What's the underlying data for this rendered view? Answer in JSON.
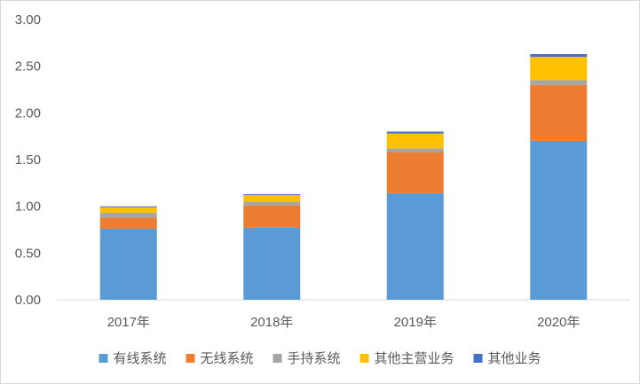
{
  "chart_data": {
    "type": "bar",
    "stacked": true,
    "categories": [
      "2017年",
      "2018年",
      "2019年",
      "2020年"
    ],
    "series": [
      {
        "name": "有线系统",
        "color": "#5B9BD5",
        "values": [
          0.76,
          0.77,
          1.14,
          1.7
        ]
      },
      {
        "name": "无线系统",
        "color": "#ED7D31",
        "values": [
          0.12,
          0.24,
          0.44,
          0.6
        ]
      },
      {
        "name": "手持系统",
        "color": "#A5A5A5",
        "values": [
          0.05,
          0.04,
          0.04,
          0.05
        ]
      },
      {
        "name": "其他主营业务",
        "color": "#FFC000",
        "values": [
          0.06,
          0.07,
          0.16,
          0.25
        ]
      },
      {
        "name": "其他业务",
        "color": "#4472C4",
        "values": [
          0.01,
          0.01,
          0.02,
          0.03
        ]
      }
    ],
    "y_ticks": [
      "0.00",
      "0.50",
      "1.00",
      "1.50",
      "2.00",
      "2.50",
      "3.00"
    ],
    "ylim": [
      0,
      3
    ],
    "grid": false,
    "legend_position": "bottom"
  }
}
